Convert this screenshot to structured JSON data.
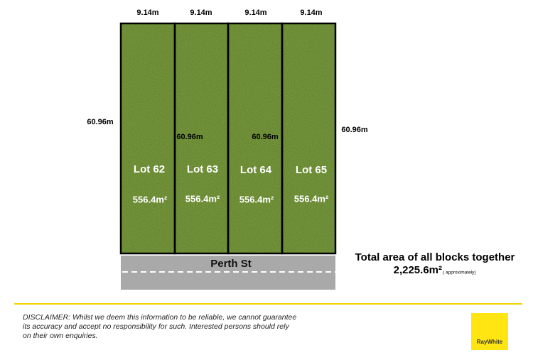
{
  "frontages": [
    "9.14m",
    "9.14m",
    "9.14m",
    "9.14m"
  ],
  "depths": [
    "60.96m",
    "60.96m",
    "60.96m",
    "60.96m"
  ],
  "lots": [
    {
      "label": "Lot 62",
      "area": "556.4m²"
    },
    {
      "label": "Lot 63",
      "area": "556.4m²"
    },
    {
      "label": "Lot 64",
      "area": "556.4m²"
    },
    {
      "label": "Lot 65",
      "area": "556.4m²"
    }
  ],
  "street": "Perth St",
  "total": {
    "title": "Total area of all blocks together",
    "area": "2,225.6m²",
    "note": "( approximately)"
  },
  "disclaimer": [
    "DISCLAIMER: Whilst we deem this information to be reliable, we cannot guarantee",
    "its accuracy and accept no responsibility for such. Interested persons should rely",
    "on their own enquiries."
  ],
  "logo": "RayWhite"
}
